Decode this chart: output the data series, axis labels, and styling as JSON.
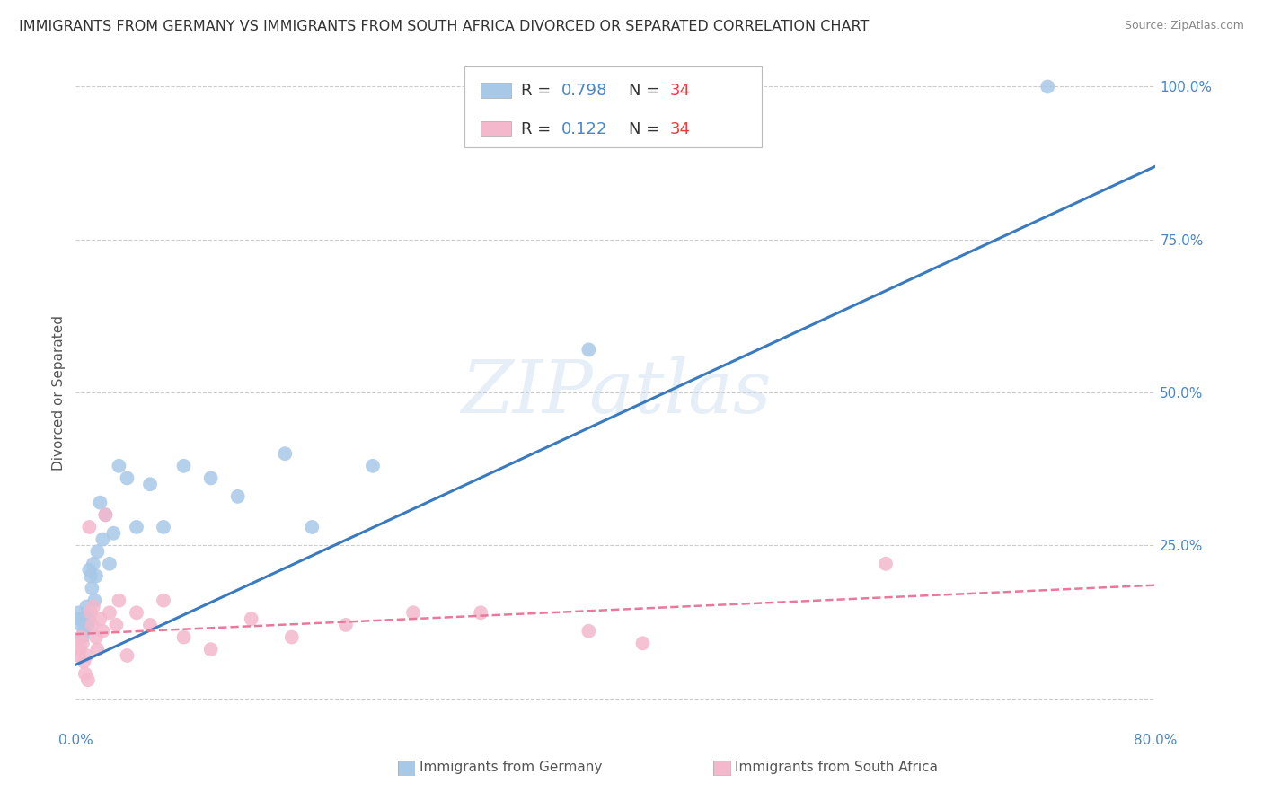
{
  "title": "IMMIGRANTS FROM GERMANY VS IMMIGRANTS FROM SOUTH AFRICA DIVORCED OR SEPARATED CORRELATION CHART",
  "source": "Source: ZipAtlas.com",
  "ylabel": "Divorced or Separated",
  "legend_label1": "Immigrants from Germany",
  "legend_label2": "Immigrants from South Africa",
  "R1": "0.798",
  "N1": "34",
  "R2": "0.122",
  "N2": "34",
  "xlim": [
    0.0,
    0.8
  ],
  "ylim": [
    -0.05,
    1.05
  ],
  "xticks": [
    0.0,
    0.1,
    0.2,
    0.3,
    0.4,
    0.5,
    0.6,
    0.7,
    0.8
  ],
  "xtick_labels": [
    "0.0%",
    "",
    "",
    "",
    "",
    "",
    "",
    "",
    "80.0%"
  ],
  "yticks_right": [
    0.0,
    0.25,
    0.5,
    0.75,
    1.0
  ],
  "ytick_labels_right": [
    "",
    "25.0%",
    "50.0%",
    "75.0%",
    "100.0%"
  ],
  "blue_color": "#a8c8e8",
  "pink_color": "#f4b8cc",
  "blue_line_color": "#3a7abf",
  "pink_line_color": "#e8799a",
  "background_color": "#ffffff",
  "grid_color": "#cccccc",
  "watermark": "ZIPatlas",
  "blue_scatter_x": [
    0.002,
    0.003,
    0.004,
    0.005,
    0.006,
    0.007,
    0.008,
    0.009,
    0.01,
    0.01,
    0.011,
    0.012,
    0.013,
    0.014,
    0.015,
    0.016,
    0.018,
    0.02,
    0.022,
    0.025,
    0.028,
    0.032,
    0.038,
    0.045,
    0.055,
    0.065,
    0.08,
    0.1,
    0.12,
    0.155,
    0.175,
    0.22,
    0.38,
    0.72
  ],
  "blue_scatter_y": [
    0.14,
    0.13,
    0.12,
    0.1,
    0.11,
    0.13,
    0.15,
    0.12,
    0.21,
    0.13,
    0.2,
    0.18,
    0.22,
    0.16,
    0.2,
    0.24,
    0.32,
    0.26,
    0.3,
    0.22,
    0.27,
    0.38,
    0.36,
    0.28,
    0.35,
    0.28,
    0.38,
    0.36,
    0.33,
    0.4,
    0.28,
    0.38,
    0.57,
    1.0
  ],
  "pink_scatter_x": [
    0.002,
    0.003,
    0.004,
    0.005,
    0.006,
    0.007,
    0.008,
    0.009,
    0.01,
    0.011,
    0.012,
    0.013,
    0.015,
    0.016,
    0.018,
    0.02,
    0.022,
    0.025,
    0.03,
    0.032,
    0.038,
    0.045,
    0.055,
    0.065,
    0.08,
    0.1,
    0.13,
    0.16,
    0.2,
    0.25,
    0.3,
    0.38,
    0.42,
    0.6
  ],
  "pink_scatter_y": [
    0.07,
    0.08,
    0.1,
    0.09,
    0.06,
    0.04,
    0.07,
    0.03,
    0.28,
    0.14,
    0.12,
    0.15,
    0.1,
    0.08,
    0.13,
    0.11,
    0.3,
    0.14,
    0.12,
    0.16,
    0.07,
    0.14,
    0.12,
    0.16,
    0.1,
    0.08,
    0.13,
    0.1,
    0.12,
    0.14,
    0.14,
    0.11,
    0.09,
    0.22
  ],
  "blue_line_x0": 0.0,
  "blue_line_y0": 0.055,
  "blue_line_x1": 0.8,
  "blue_line_y1": 0.87,
  "pink_line_x0": 0.0,
  "pink_line_y0": 0.105,
  "pink_line_x1": 0.8,
  "pink_line_y1": 0.185,
  "title_fontsize": 11.5,
  "source_fontsize": 9,
  "axis_label_fontsize": 11,
  "tick_fontsize": 11,
  "legend_fontsize": 13
}
